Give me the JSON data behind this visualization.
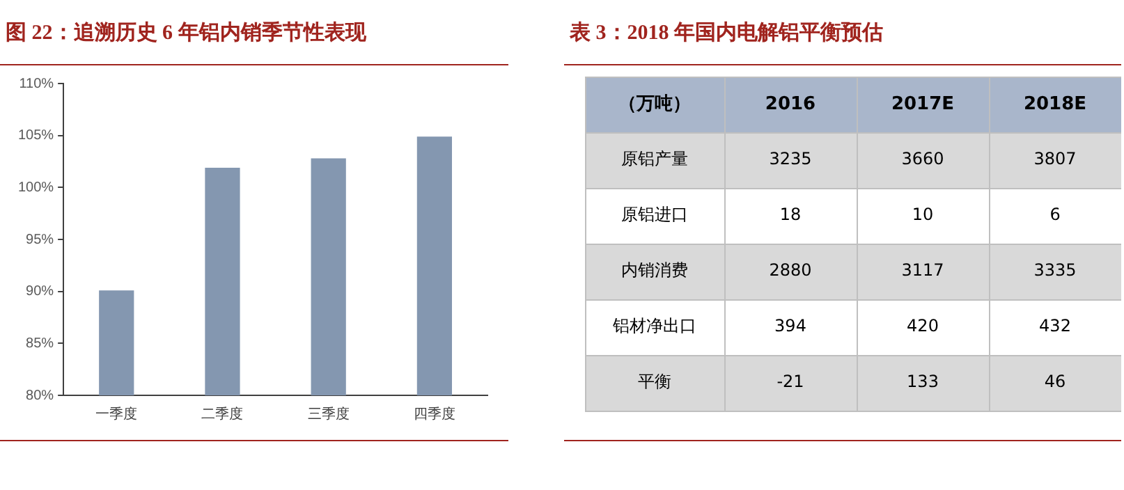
{
  "chart_data": [
    {
      "type": "bar",
      "title": "图 22：追溯历史 6 年铝内销季节性表现",
      "categories": [
        "一季度",
        "二季度",
        "三季度",
        "四季度"
      ],
      "values": [
        90.1,
        101.9,
        102.8,
        104.9
      ],
      "color": "#8497b0",
      "ylim": [
        80,
        110
      ],
      "yticks": [
        {
          "value": 80,
          "label": "80%"
        },
        {
          "value": 85,
          "label": "85%"
        },
        {
          "value": 90,
          "label": "90%"
        },
        {
          "value": 95,
          "label": "95%"
        },
        {
          "value": 100,
          "label": "100%"
        },
        {
          "value": 105,
          "label": "105%"
        },
        {
          "value": 110,
          "label": "110%"
        }
      ],
      "grid": false,
      "legend": false
    },
    {
      "type": "heatmap",
      "data_labels": true,
      "title": "表 3：2018 年国内电解铝平衡预估",
      "ylabel": "（万吨）",
      "categories": [
        "2016",
        "2017E",
        "2018E"
      ],
      "y_categories": [
        "原铝产量",
        "原铝进口",
        "内销消费",
        "铝材净出口",
        "平衡"
      ],
      "cells": [
        [
          3235,
          3660,
          3807
        ],
        [
          18,
          10,
          6
        ],
        [
          2880,
          3117,
          3335
        ],
        [
          394,
          420,
          432
        ],
        [
          -21,
          133,
          46
        ]
      ]
    }
  ]
}
